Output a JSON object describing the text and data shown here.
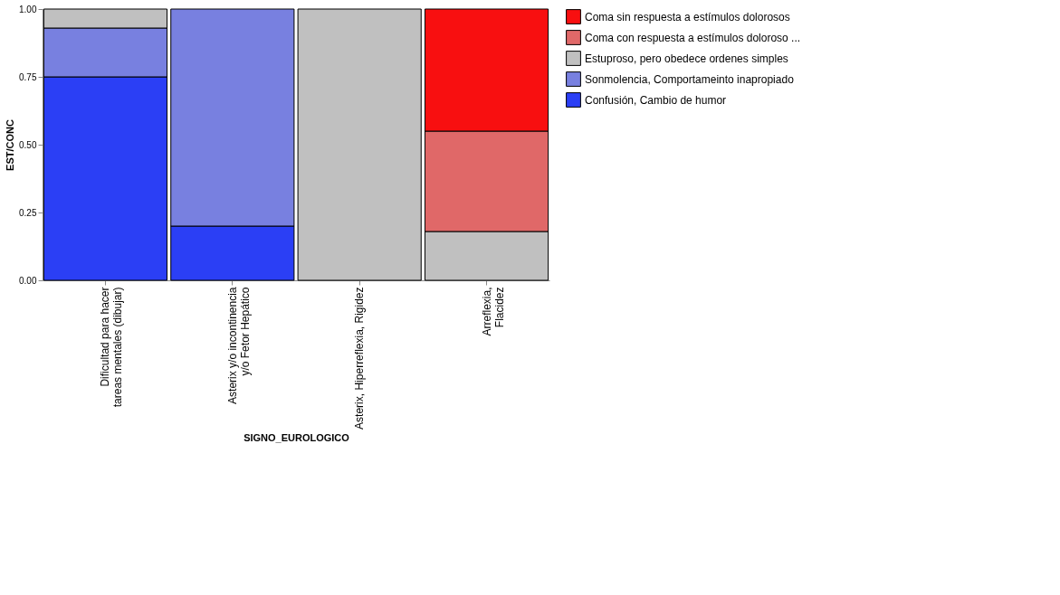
{
  "chart_data": {
    "type": "bar",
    "stacked": true,
    "xlabel": "SIGNO_EUROLOGICO",
    "ylabel": "EST/CONC",
    "categories": [
      "Dificultad para hacer\ntareas mentales  (dibujar)",
      "Asterix y/o incontinencia\ny/o   Fetor Hepático",
      "Asterix, Hiperreflexia, Rigidez",
      "Arreflexia,\nFlacidez"
    ],
    "series": [
      {
        "name": "Confusión, Cambio de humor",
        "color": "#2b3ff5",
        "values": [
          0.75,
          0.2,
          null,
          null
        ]
      },
      {
        "name": "Sonmolencia, Comportameinto inapropiado",
        "color": "#7880e0",
        "values": [
          0.18,
          0.8,
          null,
          null
        ]
      },
      {
        "name": "Estuproso, pero obedece ordenes simples",
        "color": "#c0c0c0",
        "values": [
          0.07,
          null,
          1.0,
          0.18
        ]
      },
      {
        "name": "Coma con respuesta a estímulos doloroso ...",
        "color": "#e06868",
        "values": [
          null,
          null,
          null,
          0.37
        ]
      },
      {
        "name": "Coma sin respuesta a estímulos dolorosos",
        "color": "#f80f10",
        "values": [
          null,
          null,
          null,
          0.45
        ]
      }
    ],
    "ylim": [
      0,
      1
    ],
    "yticks": [
      {
        "value": 0,
        "label": "0.00"
      },
      {
        "value": 0.25,
        "label": "0.25"
      },
      {
        "value": 0.5,
        "label": "0.50"
      },
      {
        "value": 0.75,
        "label": "0.75"
      },
      {
        "value": 1,
        "label": "1.00"
      }
    ],
    "grid": false,
    "legend": "right"
  }
}
